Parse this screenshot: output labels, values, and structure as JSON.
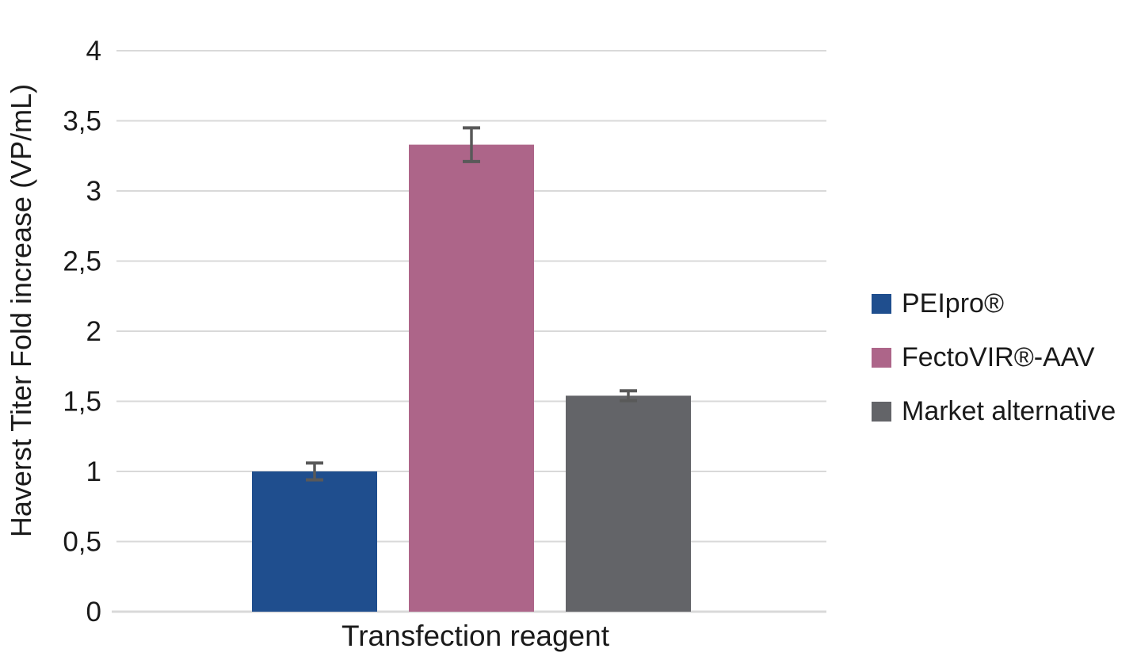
{
  "chart_data": {
    "type": "bar",
    "title": "",
    "xlabel": "Transfection reagent",
    "ylabel": "Haverst Titer Fold increase (VP/mL)",
    "categories": [
      "Transfection reagent"
    ],
    "series": [
      {
        "name": "PEIpro®",
        "value": 1.0,
        "error": 0.06,
        "color": "#1F4E8E"
      },
      {
        "name": "FectoVIR®-AAV",
        "value": 3.33,
        "error": 0.12,
        "color": "#AD6589"
      },
      {
        "name": "Market alternative",
        "value": 1.54,
        "error": 0.035,
        "color": "#636468"
      }
    ],
    "ylim": [
      0,
      4
    ],
    "y_ticks": [
      {
        "value": 0,
        "label": "0"
      },
      {
        "value": 0.5,
        "label": "0,5"
      },
      {
        "value": 1,
        "label": "1"
      },
      {
        "value": 1.5,
        "label": "1,5"
      },
      {
        "value": 2,
        "label": "2"
      },
      {
        "value": 2.5,
        "label": "2,5"
      },
      {
        "value": 3,
        "label": "3"
      },
      {
        "value": 3.5,
        "label": "3,5"
      },
      {
        "value": 4,
        "label": "4"
      }
    ],
    "grid": true,
    "legend_position": "right",
    "colors": {
      "gridline": "#D9D9D9",
      "axis_line": "#D9D9D9",
      "error_bar": "#595959",
      "text": "#1a1a1a",
      "background": "#ffffff"
    }
  }
}
